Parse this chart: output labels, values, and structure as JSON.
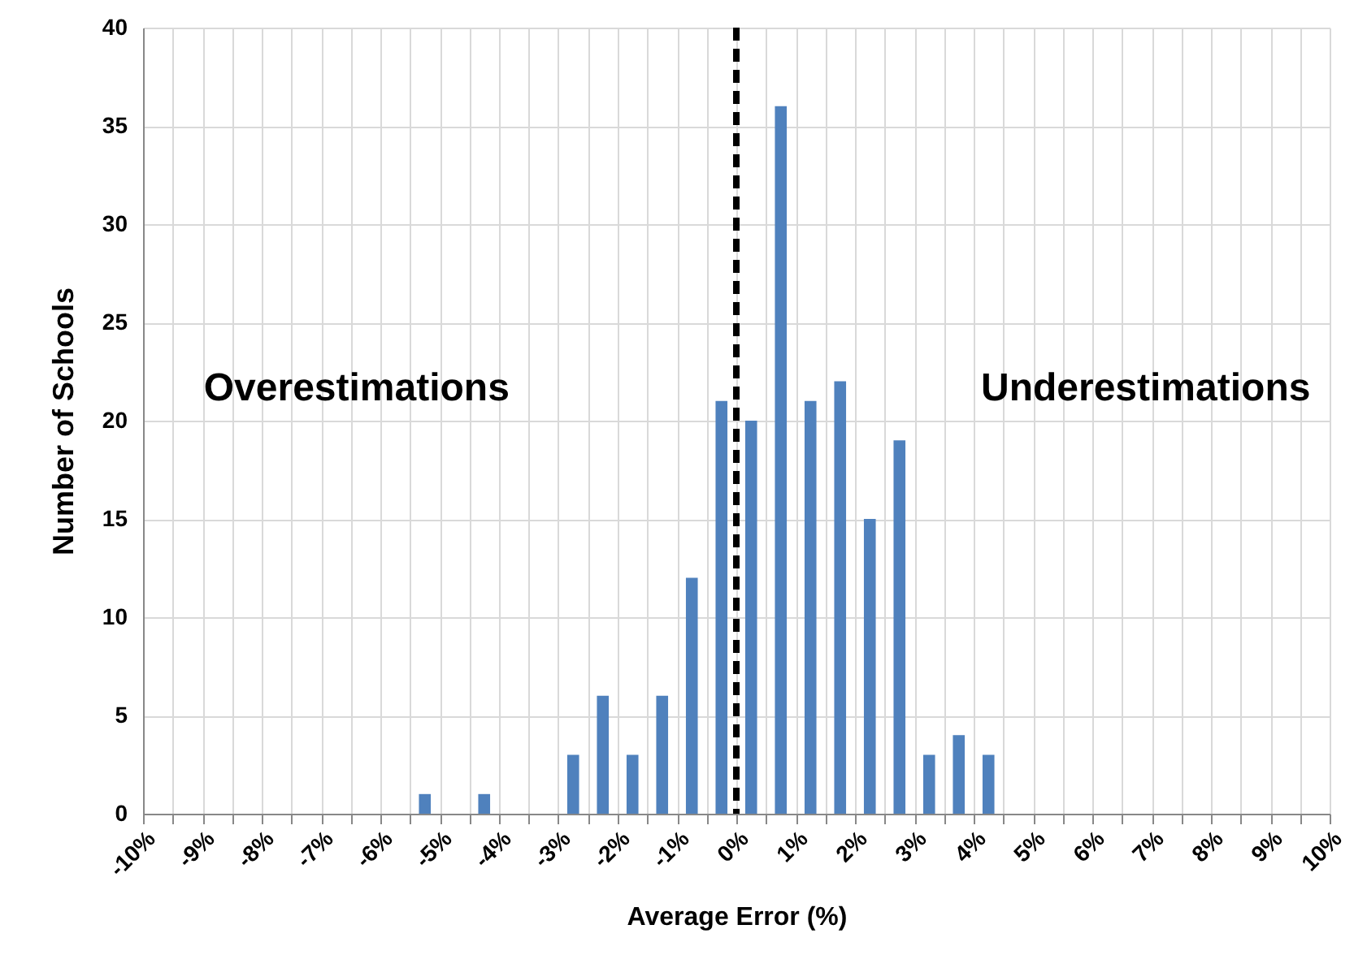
{
  "chart_data": {
    "type": "histogram",
    "xlabel": "Average Error (%)",
    "ylabel": "Number of Schools",
    "bins": [
      -10,
      -9.5,
      -9,
      -8.5,
      -8,
      -7.5,
      -7,
      -6.5,
      -6,
      -5.5,
      -5,
      -4.5,
      -4,
      -3.5,
      -3,
      -2.5,
      -2,
      -1.5,
      -1,
      -0.5,
      0,
      0.5,
      1,
      1.5,
      2,
      2.5,
      3,
      3.5,
      4,
      4.5,
      5,
      5.5,
      6,
      6.5,
      7,
      7.5,
      8,
      8.5,
      9,
      9.5,
      10
    ],
    "values": [
      0,
      0,
      0,
      0,
      0,
      0,
      0,
      0,
      0,
      1,
      0,
      1,
      0,
      0,
      3,
      6,
      3,
      6,
      12,
      21,
      20,
      36,
      21,
      22,
      15,
      19,
      3,
      4,
      3,
      0,
      0,
      0,
      0,
      0,
      0,
      0,
      0,
      0,
      0,
      0
    ],
    "color": "#4f81bd",
    "xlim": [
      -10,
      10
    ],
    "xticks": [
      {
        "value": -10,
        "label": "-10%"
      },
      {
        "value": -9.5,
        "label": null
      },
      {
        "value": -9,
        "label": "-9%"
      },
      {
        "value": -8.5,
        "label": null
      },
      {
        "value": -8,
        "label": "-8%"
      },
      {
        "value": -7.5,
        "label": null
      },
      {
        "value": -7,
        "label": "-7%"
      },
      {
        "value": -6.5,
        "label": null
      },
      {
        "value": -6,
        "label": "-6%"
      },
      {
        "value": -5.5,
        "label": null
      },
      {
        "value": -5,
        "label": "-5%"
      },
      {
        "value": -4.5,
        "label": null
      },
      {
        "value": -4,
        "label": "-4%"
      },
      {
        "value": -3.5,
        "label": null
      },
      {
        "value": -3,
        "label": "-3%"
      },
      {
        "value": -2.5,
        "label": null
      },
      {
        "value": -2,
        "label": "-2%"
      },
      {
        "value": -1.5,
        "label": null
      },
      {
        "value": -1,
        "label": "-1%"
      },
      {
        "value": -0.5,
        "label": null
      },
      {
        "value": 0,
        "label": "0%"
      },
      {
        "value": 0.5,
        "label": null
      },
      {
        "value": 1,
        "label": "1%"
      },
      {
        "value": 1.5,
        "label": null
      },
      {
        "value": 2,
        "label": "2%"
      },
      {
        "value": 2.5,
        "label": null
      },
      {
        "value": 3,
        "label": "3%"
      },
      {
        "value": 3.5,
        "label": null
      },
      {
        "value": 4,
        "label": "4%"
      },
      {
        "value": 4.5,
        "label": null
      },
      {
        "value": 5,
        "label": "5%"
      },
      {
        "value": 5.5,
        "label": null
      },
      {
        "value": 6,
        "label": "6%"
      },
      {
        "value": 6.5,
        "label": null
      },
      {
        "value": 7,
        "label": "7%"
      },
      {
        "value": 7.5,
        "label": null
      },
      {
        "value": 8,
        "label": "8%"
      },
      {
        "value": 8.5,
        "label": null
      },
      {
        "value": 9,
        "label": "9%"
      },
      {
        "value": 9.5,
        "label": null
      },
      {
        "value": 10,
        "label": "10%"
      }
    ],
    "ylim": [
      0,
      40
    ],
    "yticks": [
      0,
      5,
      10,
      15,
      20,
      25,
      30,
      35,
      40
    ],
    "grid": true,
    "ref_lines": [
      {
        "axis": "x",
        "value": 0,
        "color": "#000000",
        "line_style": "dashed"
      }
    ],
    "annotations": [
      "Overestimations",
      "Underestimations"
    ]
  }
}
